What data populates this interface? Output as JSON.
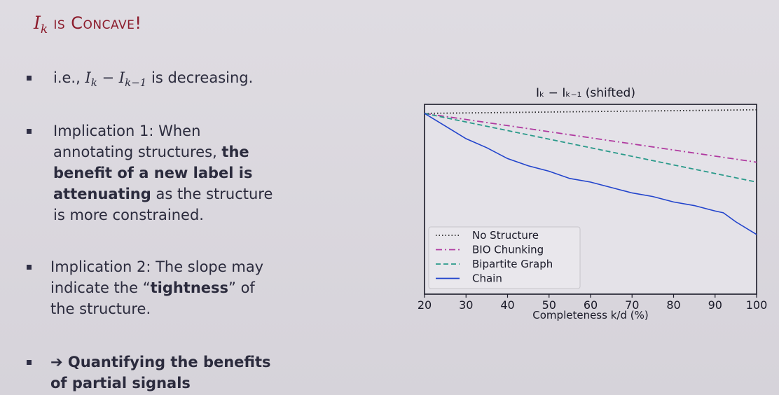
{
  "slide": {
    "title_math": "I",
    "title_sub": "k",
    "title_text": " is Concave!",
    "bullets": [
      {
        "prefix": "i.e., ",
        "math": "I",
        "sub1": "k",
        "mid": " − I",
        "sub2": "k−1",
        "suffix": " is decreasing."
      },
      {
        "lines": [
          "Implication 1: When",
          "annotating structures, ",
          "the",
          "benefit of a new label is",
          "attenuating",
          " as the structure",
          "is more constrained."
        ]
      },
      {
        "lines": [
          "Implication 2: The slope may",
          "indicate the “",
          "tightness",
          "” of",
          "the structure."
        ]
      },
      {
        "arrow": "➔",
        "lines": [
          " Quantifying the benefits",
          "of partial signals"
        ]
      }
    ]
  },
  "chart_data": {
    "type": "line",
    "title": "I_k − I_{k−1} (shifted)",
    "title_display": "Iₖ − Iₖ₋₁ (shifted)",
    "xlabel": "Completeness k/d (%)",
    "ylabel": "",
    "xlim": [
      20,
      100
    ],
    "ylim": [
      0,
      1.05
    ],
    "x_ticks": [
      20,
      30,
      40,
      50,
      60,
      70,
      80,
      90,
      100
    ],
    "legend_position": "bottom-left",
    "series": [
      {
        "name": "No Structure",
        "style": "dotted",
        "color": "#2a2a2a",
        "x": [
          20,
          100
        ],
        "y": [
          1.0,
          1.02
        ]
      },
      {
        "name": "BIO Chunking",
        "style": "dashdot",
        "color": "#b03aa0",
        "x": [
          20,
          100
        ],
        "y": [
          1.0,
          0.73
        ]
      },
      {
        "name": "Bipartite Graph",
        "style": "dashed",
        "color": "#2a9a8a",
        "x": [
          20,
          100
        ],
        "y": [
          1.0,
          0.62
        ]
      },
      {
        "name": "Chain",
        "style": "solid",
        "color": "#2244cc",
        "x": [
          20,
          25,
          30,
          35,
          40,
          45,
          50,
          55,
          60,
          65,
          70,
          75,
          80,
          85,
          90,
          92,
          95,
          100
        ],
        "y": [
          1.0,
          0.93,
          0.86,
          0.81,
          0.75,
          0.71,
          0.68,
          0.64,
          0.62,
          0.59,
          0.56,
          0.54,
          0.51,
          0.49,
          0.46,
          0.45,
          0.4,
          0.33
        ]
      }
    ]
  }
}
